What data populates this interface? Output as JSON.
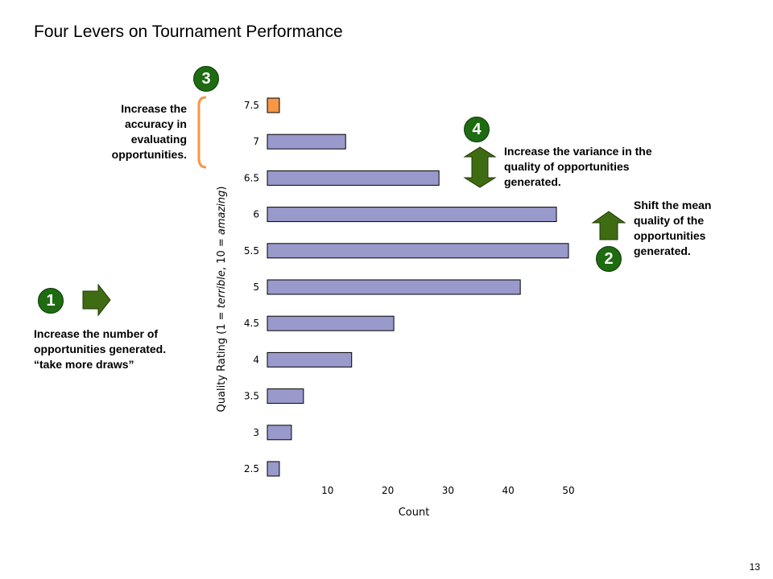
{
  "slide": {
    "title": "Four Levers on Tournament Performance",
    "page_number": "13"
  },
  "levers": [
    {
      "number": "1",
      "text_lines": [
        "Increase the number of",
        "opportunities generated.",
        "“take more draws”"
      ]
    },
    {
      "number": "2",
      "text_lines": [
        "Shift the mean",
        "quality of the",
        "opportunities",
        "generated."
      ]
    },
    {
      "number": "3",
      "text_lines": [
        "Increase the",
        "accuracy in",
        "evaluating",
        "opportunities."
      ]
    },
    {
      "number": "4",
      "text_lines": [
        "Increase the variance in the",
        "quality of opportunities",
        "generated."
      ]
    }
  ],
  "colors": {
    "bar": "#9999cc",
    "highlight_bar": "#f79646",
    "badge": "#1e6b12",
    "arrow": "#3f6b12",
    "bracket": "#f79646"
  },
  "chart_data": {
    "type": "bar",
    "orientation": "horizontal",
    "title": "",
    "xlabel": "Count",
    "ylabel_parts": [
      "Quality Rating (1 = ",
      "terrible",
      ", 10 = ",
      "amazing",
      ")"
    ],
    "categories": [
      "2.5",
      "3",
      "3.5",
      "4",
      "4.5",
      "5",
      "5.5",
      "6",
      "6.5",
      "7",
      "7.5"
    ],
    "values": [
      2,
      4,
      6,
      14,
      21,
      42,
      50,
      48,
      28.5,
      13,
      2
    ],
    "highlight_category": "7.5",
    "xlim": [
      0,
      52
    ],
    "xticks": [
      "10",
      "20",
      "30",
      "40",
      "50"
    ],
    "grid": false
  }
}
